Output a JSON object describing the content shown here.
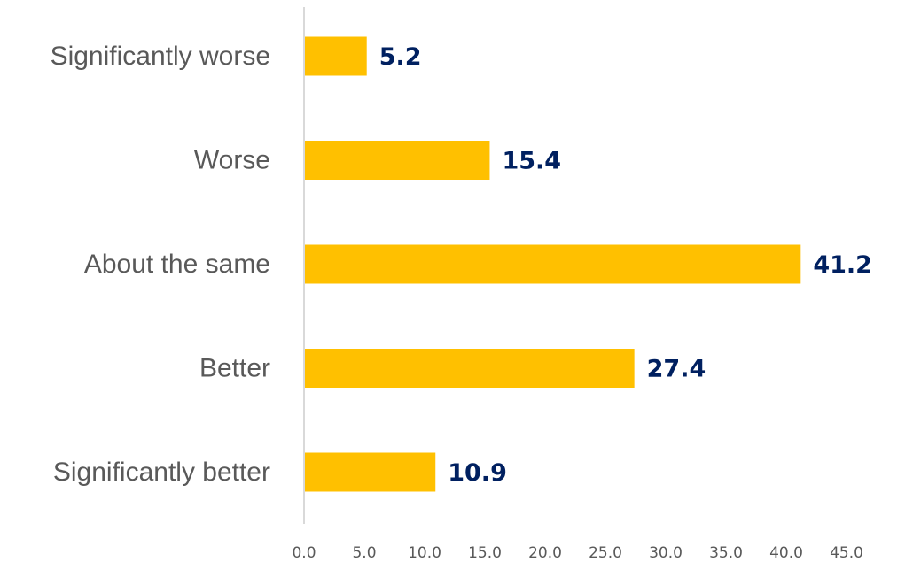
{
  "chart_data": {
    "type": "bar",
    "orientation": "horizontal",
    "categories": [
      "Significantly worse",
      "Worse",
      "About the same",
      "Better",
      "Significantly better"
    ],
    "values": [
      5.2,
      15.4,
      41.2,
      27.4,
      10.9
    ],
    "value_labels": [
      "5.2",
      "15.4",
      "41.2",
      "27.4",
      "10.9"
    ],
    "xlim": [
      0,
      45
    ],
    "x_ticks": [
      "0.0",
      "5.0",
      "10.0",
      "15.0",
      "20.0",
      "25.0",
      "30.0",
      "35.0",
      "40.0",
      "45.0"
    ],
    "grid": false,
    "legend": "none",
    "colors": {
      "bar": "#FFC000",
      "data_label": "#002060",
      "axis": "#D9D9D9"
    }
  }
}
